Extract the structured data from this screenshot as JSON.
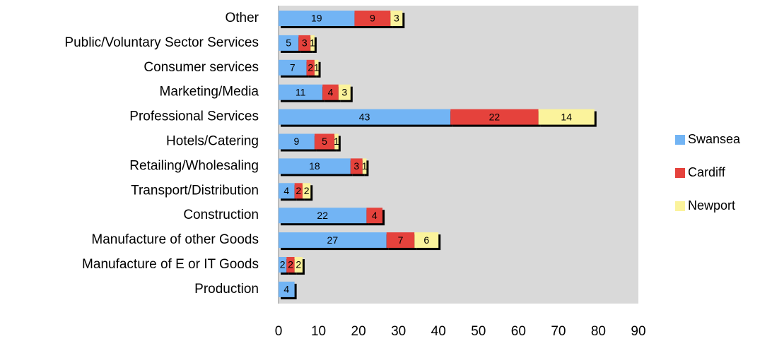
{
  "chart_data": {
    "type": "stacked-bar-horizontal",
    "categories": [
      "Other",
      "Public/Voluntary Sector Services",
      "Consumer services",
      "Marketing/Media",
      "Professional Services",
      "Hotels/Catering",
      "Retailing/Wholesaling",
      "Transport/Distribution",
      "Construction",
      "Manufacture of other Goods",
      "Manufacture of E or IT Goods",
      "Production"
    ],
    "series": [
      {
        "name": "Swansea",
        "color": "#72b4f4",
        "values": [
          19,
          5,
          7,
          11,
          43,
          9,
          18,
          4,
          22,
          27,
          2,
          4
        ]
      },
      {
        "name": "Cardiff",
        "color": "#e5423c",
        "values": [
          9,
          3,
          2,
          4,
          22,
          5,
          3,
          2,
          4,
          7,
          2,
          null
        ]
      },
      {
        "name": "Newport",
        "color": "#fbf39c",
        "values": [
          3,
          1,
          1,
          3,
          14,
          1,
          1,
          2,
          null,
          6,
          2,
          null
        ]
      }
    ],
    "xlim": [
      0,
      90
    ],
    "xticks": [
      0,
      10,
      20,
      30,
      40,
      50,
      60,
      70,
      80,
      90
    ],
    "legend": "right"
  }
}
